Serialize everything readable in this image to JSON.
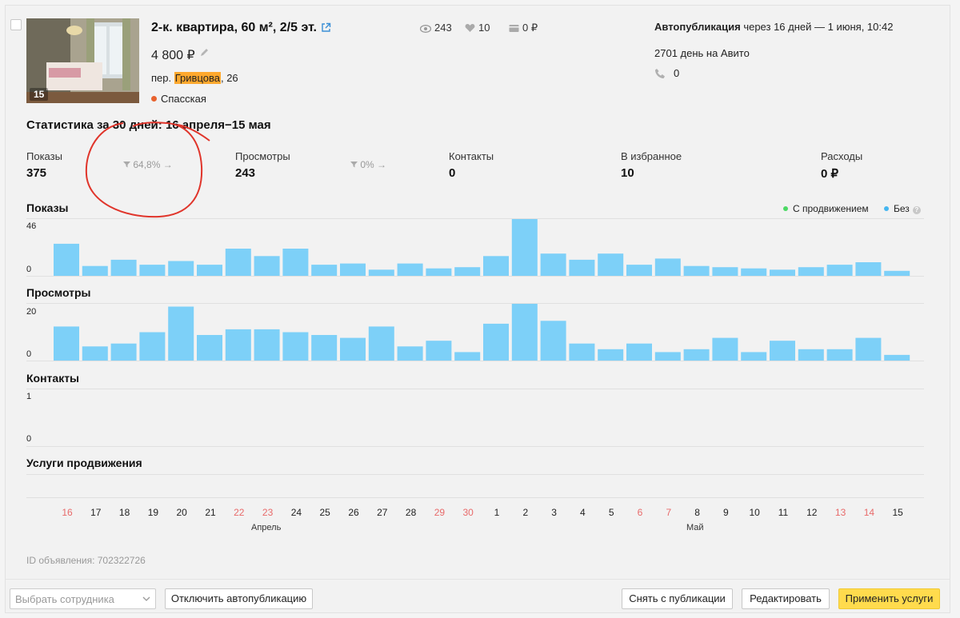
{
  "listing": {
    "photo_count": "15",
    "title": "2-к. квартира, 60 м², 2/5 эт.",
    "price": "4 800 ₽",
    "address_prefix": "пер. ",
    "address_street": "Гривцова",
    "address_suffix": ", 26",
    "metro": "Спасская",
    "views": "243",
    "favorites": "10",
    "spent": "0 ₽",
    "autopub_label": "Автопубликация",
    "autopub_text": " через 16 дней — 1 июня, 10:42",
    "days_on_site": "2701 день на Авито",
    "calls": "0"
  },
  "stats": {
    "title": "Статистика за 30 дней: 16 апреля−15 мая",
    "kpis": [
      {
        "label": "Показы",
        "value": "375"
      },
      {
        "label": "Просмотры",
        "value": "243"
      },
      {
        "label": "Контакты",
        "value": "0"
      },
      {
        "label": "В избранное",
        "value": "10"
      },
      {
        "label": "Расходы",
        "value": "0 ₽"
      }
    ],
    "conversions": [
      "64,8%",
      "0%"
    ]
  },
  "legend": {
    "promoted": "С продвижением",
    "without": "Без",
    "help": "?",
    "promoted_color": "#4cd964",
    "without_color": "#45b6f0"
  },
  "chart_data": [
    {
      "type": "bar",
      "title": "Показы",
      "ylim": [
        0,
        46
      ],
      "yticks": [
        "46",
        "0"
      ],
      "categories": [
        "16",
        "17",
        "18",
        "19",
        "20",
        "21",
        "22",
        "23",
        "24",
        "25",
        "26",
        "27",
        "28",
        "29",
        "30",
        "1",
        "2",
        "3",
        "4",
        "5",
        "6",
        "7",
        "8",
        "9",
        "10",
        "11",
        "12",
        "13",
        "14",
        "15"
      ],
      "series": [
        {
          "name": "Без",
          "color": "#7dd0f8",
          "values": [
            26,
            8,
            13,
            9,
            12,
            9,
            22,
            16,
            22,
            9,
            10,
            5,
            10,
            6,
            7,
            16,
            46,
            18,
            13,
            18,
            9,
            14,
            8,
            7,
            6,
            5,
            7,
            9,
            11,
            4
          ]
        }
      ]
    },
    {
      "type": "bar",
      "title": "Просмотры",
      "ylim": [
        0,
        20
      ],
      "yticks": [
        "20",
        "0"
      ],
      "categories": [
        "16",
        "17",
        "18",
        "19",
        "20",
        "21",
        "22",
        "23",
        "24",
        "25",
        "26",
        "27",
        "28",
        "29",
        "30",
        "1",
        "2",
        "3",
        "4",
        "5",
        "6",
        "7",
        "8",
        "9",
        "10",
        "11",
        "12",
        "13",
        "14",
        "15"
      ],
      "series": [
        {
          "name": "Без",
          "color": "#7dd0f8",
          "values": [
            12,
            5,
            6,
            10,
            19,
            9,
            11,
            11,
            10,
            9,
            8,
            12,
            5,
            7,
            3,
            13,
            20,
            14,
            6,
            4,
            6,
            3,
            4,
            8,
            3,
            7,
            4,
            4,
            8,
            2
          ]
        }
      ]
    },
    {
      "type": "bar",
      "title": "Контакты",
      "ylim": [
        0,
        1
      ],
      "yticks": [
        "1",
        "0"
      ],
      "categories": [
        "16",
        "17",
        "18",
        "19",
        "20",
        "21",
        "22",
        "23",
        "24",
        "25",
        "26",
        "27",
        "28",
        "29",
        "30",
        "1",
        "2",
        "3",
        "4",
        "5",
        "6",
        "7",
        "8",
        "9",
        "10",
        "11",
        "12",
        "13",
        "14",
        "15"
      ],
      "series": [
        {
          "name": "Без",
          "color": "#7dd0f8",
          "values": [
            0,
            0,
            0,
            0,
            0,
            0,
            0,
            0,
            0,
            0,
            0,
            0,
            0,
            0,
            0,
            0,
            0,
            0,
            0,
            0,
            0,
            0,
            0,
            0,
            0,
            0,
            0,
            0,
            0,
            0
          ]
        }
      ]
    }
  ],
  "promo_section": "Услуги продвижения",
  "days": [
    {
      "d": "16",
      "we": true
    },
    {
      "d": "17",
      "we": false
    },
    {
      "d": "18",
      "we": false
    },
    {
      "d": "19",
      "we": false
    },
    {
      "d": "20",
      "we": false
    },
    {
      "d": "21",
      "we": false
    },
    {
      "d": "22",
      "we": true
    },
    {
      "d": "23",
      "we": true
    },
    {
      "d": "24",
      "we": false
    },
    {
      "d": "25",
      "we": false
    },
    {
      "d": "26",
      "we": false
    },
    {
      "d": "27",
      "we": false
    },
    {
      "d": "28",
      "we": false
    },
    {
      "d": "29",
      "we": true
    },
    {
      "d": "30",
      "we": true
    },
    {
      "d": "1",
      "we": false
    },
    {
      "d": "2",
      "we": false
    },
    {
      "d": "3",
      "we": false
    },
    {
      "d": "4",
      "we": false
    },
    {
      "d": "5",
      "we": false
    },
    {
      "d": "6",
      "we": true
    },
    {
      "d": "7",
      "we": true
    },
    {
      "d": "8",
      "we": false
    },
    {
      "d": "9",
      "we": false
    },
    {
      "d": "10",
      "we": false
    },
    {
      "d": "11",
      "we": false
    },
    {
      "d": "12",
      "we": false
    },
    {
      "d": "13",
      "we": true
    },
    {
      "d": "14",
      "we": true
    },
    {
      "d": "15",
      "we": false
    }
  ],
  "months": {
    "april": "Апрель",
    "may": "Май"
  },
  "ad_id": "ID объявления: 702322726",
  "footer": {
    "employee_placeholder": "Выбрать сотрудника",
    "disable_autopub": "Отключить автопубликацию",
    "unpublish": "Снять с публикации",
    "edit": "Редактировать",
    "apply_services": "Применить услуги"
  }
}
